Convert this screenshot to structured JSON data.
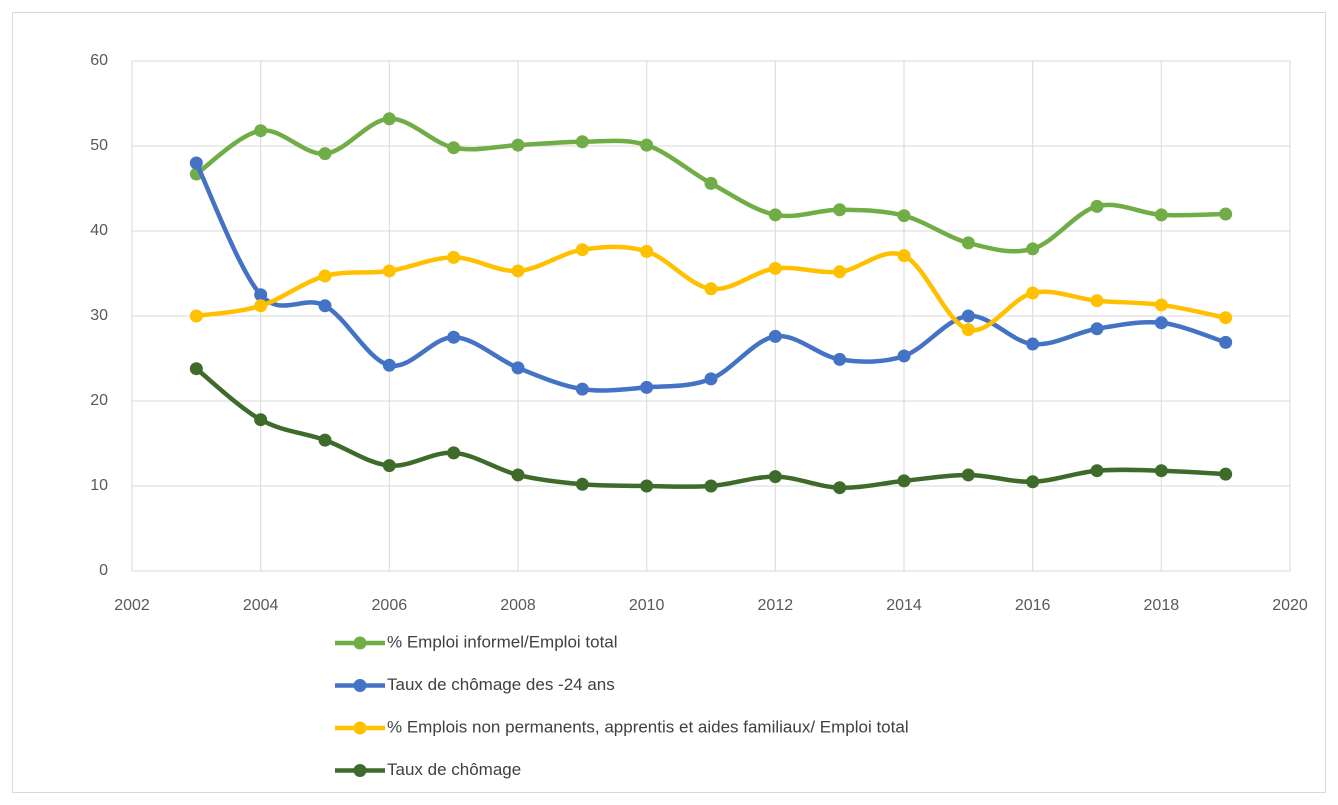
{
  "chart_data": {
    "type": "line",
    "x": [
      2003,
      2004,
      2005,
      2006,
      2007,
      2008,
      2009,
      2010,
      2011,
      2012,
      2013,
      2014,
      2015,
      2016,
      2017,
      2018,
      2019
    ],
    "series": [
      {
        "name": "% Emploi informel/Emploi total",
        "color": "#70ad47",
        "values": [
          46.7,
          51.8,
          49.1,
          53.2,
          49.8,
          50.1,
          50.5,
          50.1,
          45.6,
          41.9,
          42.5,
          41.8,
          38.6,
          37.9,
          42.9,
          41.9,
          42.0
        ]
      },
      {
        "name": "Taux de chômage des -24 ans",
        "color": "#4472c4",
        "values": [
          48.0,
          32.5,
          31.2,
          24.2,
          27.5,
          23.9,
          21.4,
          21.6,
          22.6,
          27.6,
          24.9,
          25.3,
          30.0,
          26.7,
          28.5,
          29.2,
          26.9
        ]
      },
      {
        "name": "% Emplois non permanents, apprentis et aides familiaux/ Emploi total",
        "color": "#ffc000",
        "values": [
          30.0,
          31.2,
          34.7,
          35.3,
          36.9,
          35.3,
          37.8,
          37.6,
          33.2,
          35.6,
          35.2,
          37.1,
          28.4,
          32.7,
          31.8,
          31.3,
          29.8
        ]
      },
      {
        "name": "Taux de chômage",
        "color": "#3e6b2a",
        "values": [
          23.8,
          17.8,
          15.4,
          12.4,
          13.9,
          11.3,
          10.2,
          10.0,
          10.0,
          11.1,
          9.8,
          10.6,
          11.3,
          10.5,
          11.8,
          11.8,
          11.4
        ]
      }
    ],
    "xlim": [
      2002,
      2020
    ],
    "xticks": [
      2002,
      2004,
      2006,
      2008,
      2010,
      2012,
      2014,
      2016,
      2018,
      2020
    ],
    "ylim": [
      0,
      60
    ],
    "yticks": [
      0,
      10,
      20,
      30,
      40,
      50,
      60
    ],
    "grid": true,
    "legend": "bottom"
  }
}
